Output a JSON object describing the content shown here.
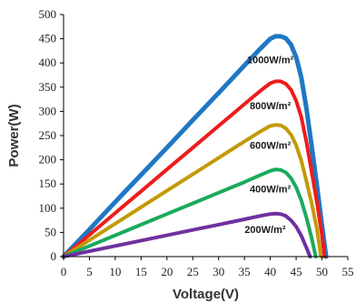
{
  "chart_data": {
    "type": "line",
    "title": "",
    "xlabel": "Voltage(V)",
    "ylabel": "Power(W)",
    "xlim": [
      0,
      55
    ],
    "ylim": [
      0,
      500
    ],
    "x_ticks": [
      "0",
      "5",
      "10",
      "15",
      "20",
      "25",
      "30",
      "35",
      "40",
      "45",
      "50",
      "55"
    ],
    "y_ticks": [
      "0",
      "50",
      "100",
      "150",
      "200",
      "250",
      "300",
      "350",
      "400",
      "450",
      "500"
    ],
    "grid": false,
    "legend": "none",
    "series": [
      {
        "name": "1000W/m²",
        "color": "#1f77c4",
        "x": [
          0,
          5,
          10,
          15,
          20,
          25,
          30,
          35,
          38,
          40,
          41,
          42,
          43,
          44,
          45,
          46,
          47,
          48,
          49,
          50,
          50.8
        ],
        "y": [
          0,
          56,
          113,
          169,
          225,
          282,
          338,
          395,
          429,
          450,
          455,
          455,
          451,
          438,
          412,
          370,
          305,
          228,
          148,
          65,
          0
        ]
      },
      {
        "name": "800W/m²",
        "color": "#ee1c1c",
        "x": [
          0,
          5,
          10,
          15,
          20,
          25,
          30,
          35,
          38,
          40,
          41,
          42,
          43,
          44,
          45,
          46,
          47,
          48,
          49,
          50,
          50.5
        ],
        "y": [
          0,
          45,
          90,
          135,
          180,
          225,
          270,
          315,
          342,
          358,
          362,
          362,
          357,
          345,
          322,
          288,
          236,
          175,
          113,
          45,
          0
        ]
      },
      {
        "name": "600W/m²",
        "color": "#c39a06",
        "x": [
          0,
          5,
          10,
          15,
          20,
          25,
          30,
          35,
          38,
          40,
          41,
          42,
          43,
          44,
          45,
          46,
          47,
          48,
          49,
          49.8
        ],
        "y": [
          0,
          34,
          68,
          102,
          136,
          170,
          204,
          238,
          258,
          270,
          272,
          271,
          265,
          252,
          230,
          198,
          155,
          110,
          58,
          0
        ]
      },
      {
        "name": "400W/m²",
        "color": "#1aaa5c",
        "x": [
          0,
          5,
          10,
          15,
          20,
          25,
          30,
          35,
          38,
          40,
          41,
          42,
          43,
          44,
          45,
          46,
          47,
          48,
          48.8
        ],
        "y": [
          0,
          22,
          44,
          66,
          88,
          110,
          132,
          154,
          168,
          177,
          180,
          179,
          174,
          162,
          143,
          116,
          80,
          38,
          0
        ]
      },
      {
        "name": "200W/m²",
        "color": "#7030a0",
        "x": [
          0,
          5,
          10,
          15,
          20,
          25,
          30,
          35,
          38,
          40,
          41,
          42,
          43,
          44,
          45,
          46,
          47,
          47.7
        ],
        "y": [
          0,
          11,
          22,
          33,
          44,
          55,
          66,
          77,
          84,
          88,
          89,
          88,
          84,
          75,
          62,
          43,
          18,
          0
        ]
      }
    ],
    "annotations": [
      {
        "text": "1000W/m²",
        "x": 40,
        "y": 407
      },
      {
        "text": "800W/m²",
        "x": 40,
        "y": 312
      },
      {
        "text": "600W/m²",
        "x": 40,
        "y": 230
      },
      {
        "text": "400W/m²",
        "x": 40,
        "y": 140
      },
      {
        "text": "200W/m²",
        "x": 39,
        "y": 56
      }
    ]
  }
}
